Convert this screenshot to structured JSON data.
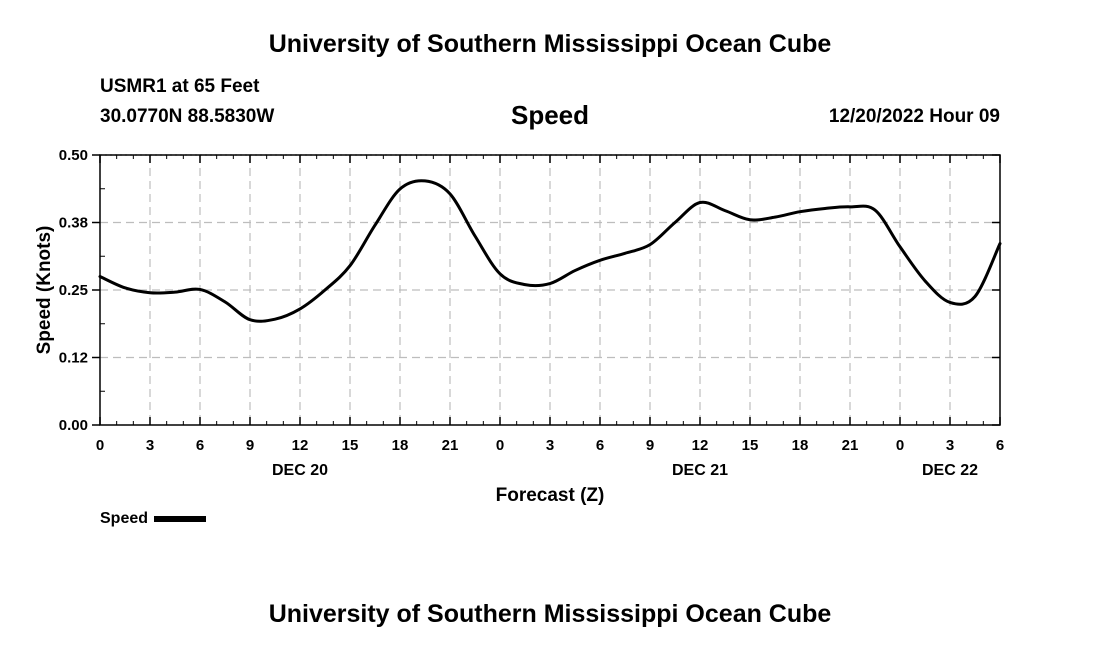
{
  "page": {
    "title_top": "University of Southern Mississippi Ocean Cube",
    "title_bottom": "University of Southern Mississippi Ocean Cube",
    "station": "USMR1 at 65 Feet",
    "coords": "30.0770N  88.5830W",
    "timestamp": "12/20/2022 Hour 09"
  },
  "chart_data": {
    "type": "line",
    "title": "Speed",
    "xlabel": "Forecast (Z)",
    "ylabel": "Speed (Knots)",
    "xlim": [
      0,
      54
    ],
    "ylim": [
      0,
      0.5
    ],
    "yticks": [
      0.0,
      0.125,
      0.25,
      0.375,
      0.5
    ],
    "ytick_labels": [
      "0.00",
      "0.12",
      "0.25",
      "0.38",
      "0.50"
    ],
    "xticks": [
      0,
      3,
      6,
      9,
      12,
      15,
      18,
      21,
      24,
      27,
      30,
      33,
      36,
      39,
      42,
      45,
      48,
      51,
      54
    ],
    "xtick_labels": [
      "0",
      "3",
      "6",
      "9",
      "12",
      "15",
      "18",
      "21",
      "0",
      "3",
      "6",
      "9",
      "12",
      "15",
      "18",
      "21",
      "0",
      "3",
      "6"
    ],
    "day_labels": [
      {
        "x": 12,
        "label": "DEC 20"
      },
      {
        "x": 36,
        "label": "DEC 21"
      },
      {
        "x": 51,
        "label": "DEC 22"
      }
    ],
    "grid": true,
    "legend": "bottom-left",
    "series": [
      {
        "name": "Speed",
        "color": "#000000",
        "x": [
          0,
          1.5,
          3,
          4.5,
          6,
          7.5,
          9,
          10.5,
          12,
          13.5,
          15,
          16.5,
          18,
          19.5,
          21,
          22.5,
          24,
          25.5,
          27,
          28.5,
          30,
          31.5,
          33,
          34.5,
          36,
          37.5,
          39,
          40.5,
          42,
          43.5,
          45,
          46.5,
          48,
          49.5,
          51,
          52.5,
          54
        ],
        "values": [
          0.275,
          0.254,
          0.245,
          0.246,
          0.251,
          0.228,
          0.195,
          0.196,
          0.215,
          0.25,
          0.295,
          0.37,
          0.437,
          0.452,
          0.428,
          0.35,
          0.28,
          0.26,
          0.262,
          0.286,
          0.305,
          0.318,
          0.334,
          0.375,
          0.412,
          0.397,
          0.38,
          0.385,
          0.395,
          0.401,
          0.404,
          0.398,
          0.33,
          0.267,
          0.227,
          0.238,
          0.336
        ]
      }
    ]
  }
}
